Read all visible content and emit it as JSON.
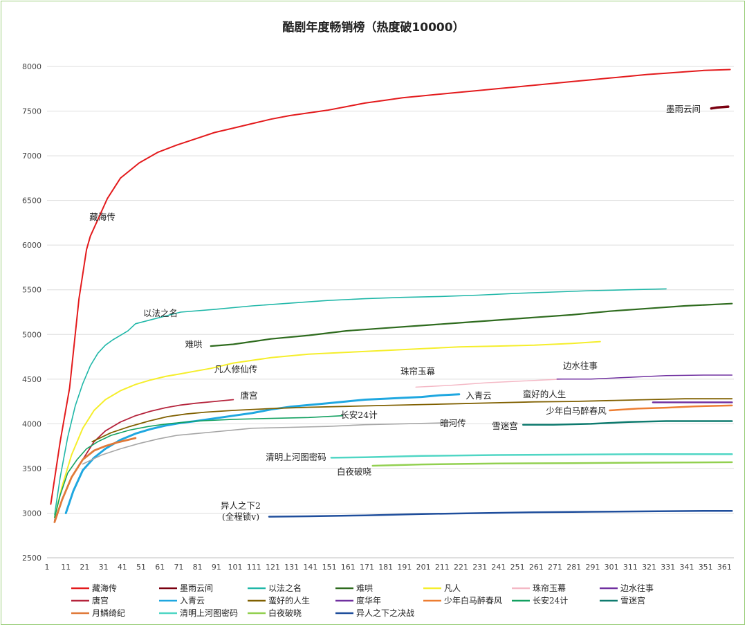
{
  "chart_data": {
    "type": "line",
    "title": "酷剧年度畅销榜（热度破10000）",
    "xlabel": "",
    "ylabel": "",
    "xlim": [
      1,
      366
    ],
    "ylim": [
      2500,
      8000
    ],
    "x_ticks": [
      1,
      11,
      21,
      31,
      41,
      51,
      61,
      71,
      81,
      91,
      101,
      111,
      121,
      131,
      141,
      151,
      161,
      171,
      181,
      191,
      201,
      211,
      221,
      231,
      241,
      251,
      261,
      271,
      281,
      291,
      301,
      311,
      321,
      331,
      341,
      351,
      361
    ],
    "y_ticks": [
      2500,
      3000,
      3500,
      4000,
      4500,
      5000,
      5500,
      6000,
      6500,
      7000,
      7500,
      8000
    ],
    "grid": "horizontal",
    "legend": "bottom",
    "series": [
      {
        "name": "藏海传",
        "color": "#e31a1c",
        "width": 2,
        "label": "藏海传",
        "x": [
          3,
          8,
          13,
          18,
          22,
          24,
          33,
          40,
          50,
          60,
          70,
          80,
          90,
          100,
          110,
          120,
          130,
          140,
          150,
          160,
          170,
          180,
          190,
          200,
          210,
          220,
          230,
          240,
          250,
          260,
          270,
          280,
          290,
          300,
          310,
          320,
          330,
          340,
          350,
          364
        ],
        "y": [
          3100,
          3800,
          4400,
          5400,
          5950,
          6100,
          6520,
          6750,
          6920,
          7040,
          7120,
          7190,
          7260,
          7310,
          7360,
          7410,
          7450,
          7480,
          7510,
          7550,
          7590,
          7620,
          7650,
          7670,
          7690,
          7710,
          7730,
          7750,
          7770,
          7790,
          7810,
          7830,
          7850,
          7870,
          7890,
          7910,
          7925,
          7940,
          7955,
          7965
        ]
      },
      {
        "name": "墨雨云间",
        "color": "#7a0010",
        "width": 3.5,
        "label": "墨雨云间",
        "x": [
          354,
          357,
          360,
          363
        ],
        "y": [
          7530,
          7540,
          7545,
          7550
        ]
      },
      {
        "name": "以法之名",
        "color": "#1fb7a8",
        "width": 1.6,
        "label": "以法之名",
        "x": [
          5,
          8,
          12,
          16,
          20,
          24,
          28,
          32,
          36,
          40,
          44,
          48,
          72,
          90,
          110,
          130,
          150,
          170,
          190,
          210,
          230,
          250,
          270,
          290,
          310,
          330
        ],
        "y": [
          2980,
          3400,
          3850,
          4200,
          4450,
          4650,
          4790,
          4880,
          4940,
          4990,
          5040,
          5120,
          5250,
          5280,
          5320,
          5350,
          5380,
          5400,
          5415,
          5425,
          5440,
          5460,
          5475,
          5490,
          5500,
          5510
        ]
      },
      {
        "name": "难哄",
        "color": "#2e6b1e",
        "width": 2.2,
        "label": "难哄",
        "x": [
          88,
          100,
          120,
          140,
          160,
          180,
          200,
          220,
          240,
          260,
          280,
          300,
          320,
          340,
          365
        ],
        "y": [
          4870,
          4890,
          4950,
          4990,
          5040,
          5070,
          5100,
          5130,
          5160,
          5190,
          5220,
          5260,
          5290,
          5320,
          5345
        ]
      },
      {
        "name": "凡人",
        "color": "#f5ee2b",
        "width": 2,
        "label": "凡人修仙传",
        "x": [
          5,
          9,
          14,
          20,
          26,
          32,
          40,
          48,
          56,
          64,
          72,
          80,
          88,
          100,
          120,
          140,
          160,
          180,
          200,
          220,
          240,
          260,
          280,
          295
        ],
        "y": [
          2950,
          3300,
          3650,
          3950,
          4150,
          4270,
          4370,
          4440,
          4490,
          4530,
          4560,
          4590,
          4620,
          4680,
          4740,
          4780,
          4800,
          4820,
          4840,
          4860,
          4870,
          4880,
          4900,
          4920
        ]
      },
      {
        "name": "珠帘玉幕",
        "color": "#f4b8c5",
        "width": 1.5,
        "label": "珠帘玉幕",
        "x": [
          197,
          215,
          235,
          255,
          275
        ],
        "y": [
          4410,
          4430,
          4460,
          4480,
          4500
        ]
      },
      {
        "name": "边水往事",
        "color": "#7030a0",
        "width": 1.5,
        "label": "边水往事",
        "x": [
          272,
          290,
          310,
          330,
          350,
          365
        ],
        "y": [
          4500,
          4500,
          4520,
          4540,
          4545,
          4545
        ]
      },
      {
        "name": "唐宫",
        "color": "#b5243c",
        "width": 1.8,
        "label": "唐宫",
        "x": [
          5,
          9,
          14,
          20,
          26,
          32,
          40,
          48,
          56,
          64,
          72,
          80,
          90,
          100
        ],
        "y": [
          2920,
          3150,
          3400,
          3600,
          3800,
          3920,
          4020,
          4090,
          4140,
          4180,
          4210,
          4230,
          4250,
          4270
        ]
      },
      {
        "name": "入青云",
        "color": "#1fa7e0",
        "width": 3,
        "label": "入青云",
        "x": [
          11,
          15,
          20,
          26,
          32,
          40,
          48,
          56,
          64,
          72,
          80,
          90,
          100,
          110,
          120,
          130,
          140,
          150,
          160,
          170,
          180,
          190,
          200,
          210,
          220
        ],
        "y": [
          3000,
          3250,
          3480,
          3620,
          3720,
          3820,
          3890,
          3940,
          3980,
          4010,
          4030,
          4060,
          4090,
          4120,
          4160,
          4190,
          4210,
          4230,
          4250,
          4270,
          4280,
          4290,
          4300,
          4320,
          4330
        ]
      },
      {
        "name": "蛮好的人生",
        "color": "#806000",
        "width": 1.8,
        "label": "蛮好的人生",
        "x": [
          25,
          35,
          45,
          55,
          65,
          75,
          85,
          100,
          120,
          140,
          160,
          180,
          200,
          220,
          240,
          260,
          280,
          300,
          320,
          340,
          365
        ],
        "y": [
          3800,
          3900,
          3970,
          4030,
          4080,
          4110,
          4130,
          4150,
          4170,
          4185,
          4195,
          4205,
          4215,
          4225,
          4235,
          4245,
          4250,
          4260,
          4270,
          4280,
          4280
        ]
      },
      {
        "name": "度华年",
        "color": "#7030a0",
        "width": 2.5,
        "label": "",
        "x": [
          323,
          340,
          365
        ],
        "y": [
          4240,
          4240,
          4240
        ]
      },
      {
        "name": "少年白马醉春风",
        "color": "#ed7d31",
        "width": 2.5,
        "label": "少年白马醉春风",
        "x": [
          300,
          315,
          330,
          345,
          365
        ],
        "y": [
          4150,
          4170,
          4180,
          4195,
          4205
        ]
      },
      {
        "name": "长安24计",
        "color": "#12a060",
        "width": 1.6,
        "label": "长安24计",
        "x": [
          5,
          8,
          12,
          17,
          22,
          28,
          35,
          45,
          55,
          65,
          80,
          100,
          120,
          140,
          158
        ],
        "y": [
          2950,
          3200,
          3450,
          3600,
          3720,
          3800,
          3870,
          3930,
          3970,
          4000,
          4030,
          4050,
          4060,
          4070,
          4090
        ]
      },
      {
        "name": "雪迷宫",
        "color": "#0f7b6f",
        "width": 2.5,
        "label": "雪迷宫",
        "x": [
          254,
          270,
          290,
          310,
          330,
          350,
          365
        ],
        "y": [
          3990,
          3990,
          4000,
          4020,
          4030,
          4030,
          4030
        ]
      },
      {
        "name": "月鳞绮纪",
        "color": "#e07a3a",
        "width": 2.8,
        "label": "",
        "x": [
          5,
          9,
          14,
          20,
          26,
          32,
          38,
          44,
          48
        ],
        "y": [
          2900,
          3150,
          3400,
          3600,
          3700,
          3750,
          3790,
          3820,
          3840
        ]
      },
      {
        "name": "清明上河图密码",
        "color": "#4fd6c4",
        "width": 2.5,
        "label": "清明上河图密码",
        "x": [
          152,
          170,
          200,
          240,
          280,
          320,
          365
        ],
        "y": [
          3620,
          3625,
          3640,
          3650,
          3655,
          3660,
          3660
        ]
      },
      {
        "name": "白夜破晓",
        "color": "#92d050",
        "width": 2.5,
        "label": "白夜破晓",
        "x": [
          174,
          200,
          240,
          280,
          320,
          365
        ],
        "y": [
          3530,
          3545,
          3555,
          3560,
          3565,
          3570
        ]
      },
      {
        "name": "异人之下之决战",
        "color": "#1f4e9c",
        "width": 2.5,
        "label": "",
        "x": [
          119,
          140,
          170,
          200,
          230,
          260,
          290,
          320,
          350,
          365
        ],
        "y": [
          2960,
          2965,
          2975,
          2990,
          3000,
          3010,
          3015,
          3020,
          3025,
          3025
        ]
      },
      {
        "name": "暗河传",
        "color": "#a6a6a6",
        "width": 1.6,
        "label": "暗河传",
        "x": [
          20,
          30,
          40,
          50,
          60,
          70,
          80,
          90,
          100,
          110,
          130,
          150,
          170,
          190,
          210,
          216
        ],
        "y": [
          3550,
          3650,
          3720,
          3780,
          3830,
          3870,
          3890,
          3910,
          3930,
          3950,
          3960,
          3970,
          3990,
          4000,
          4010,
          4020
        ]
      }
    ],
    "annotations": {
      "yiren_line1": "异人之下2",
      "yiren_line2": "(全程锁v)"
    },
    "legend_items": [
      {
        "name": "藏海传",
        "color": "#e31a1c"
      },
      {
        "name": "墨雨云间",
        "color": "#7a0010"
      },
      {
        "name": "以法之名",
        "color": "#1fb7a8"
      },
      {
        "name": "难哄",
        "color": "#2e6b1e"
      },
      {
        "name": "凡人",
        "color": "#f5ee2b"
      },
      {
        "name": "珠帘玉幕",
        "color": "#f4b8c5"
      },
      {
        "name": "边水往事",
        "color": "#7030a0"
      },
      {
        "name": "唐宫",
        "color": "#b5243c"
      },
      {
        "name": "入青云",
        "color": "#1fa7e0"
      },
      {
        "name": "蛮好的人生",
        "color": "#806000"
      },
      {
        "name": "度华年",
        "color": "#7030a0"
      },
      {
        "name": "少年白马醉春风",
        "color": "#ed7d31"
      },
      {
        "name": "长安24计",
        "color": "#12a060"
      },
      {
        "name": "雪迷宫",
        "color": "#0f7b6f"
      },
      {
        "name": "月鳞绮纪",
        "color": "#e07a3a"
      },
      {
        "name": "清明上河图密码",
        "color": "#4fd6c4"
      },
      {
        "name": "白夜破晓",
        "color": "#92d050"
      },
      {
        "name": "异人之下之决战",
        "color": "#1f4e9c"
      }
    ]
  }
}
